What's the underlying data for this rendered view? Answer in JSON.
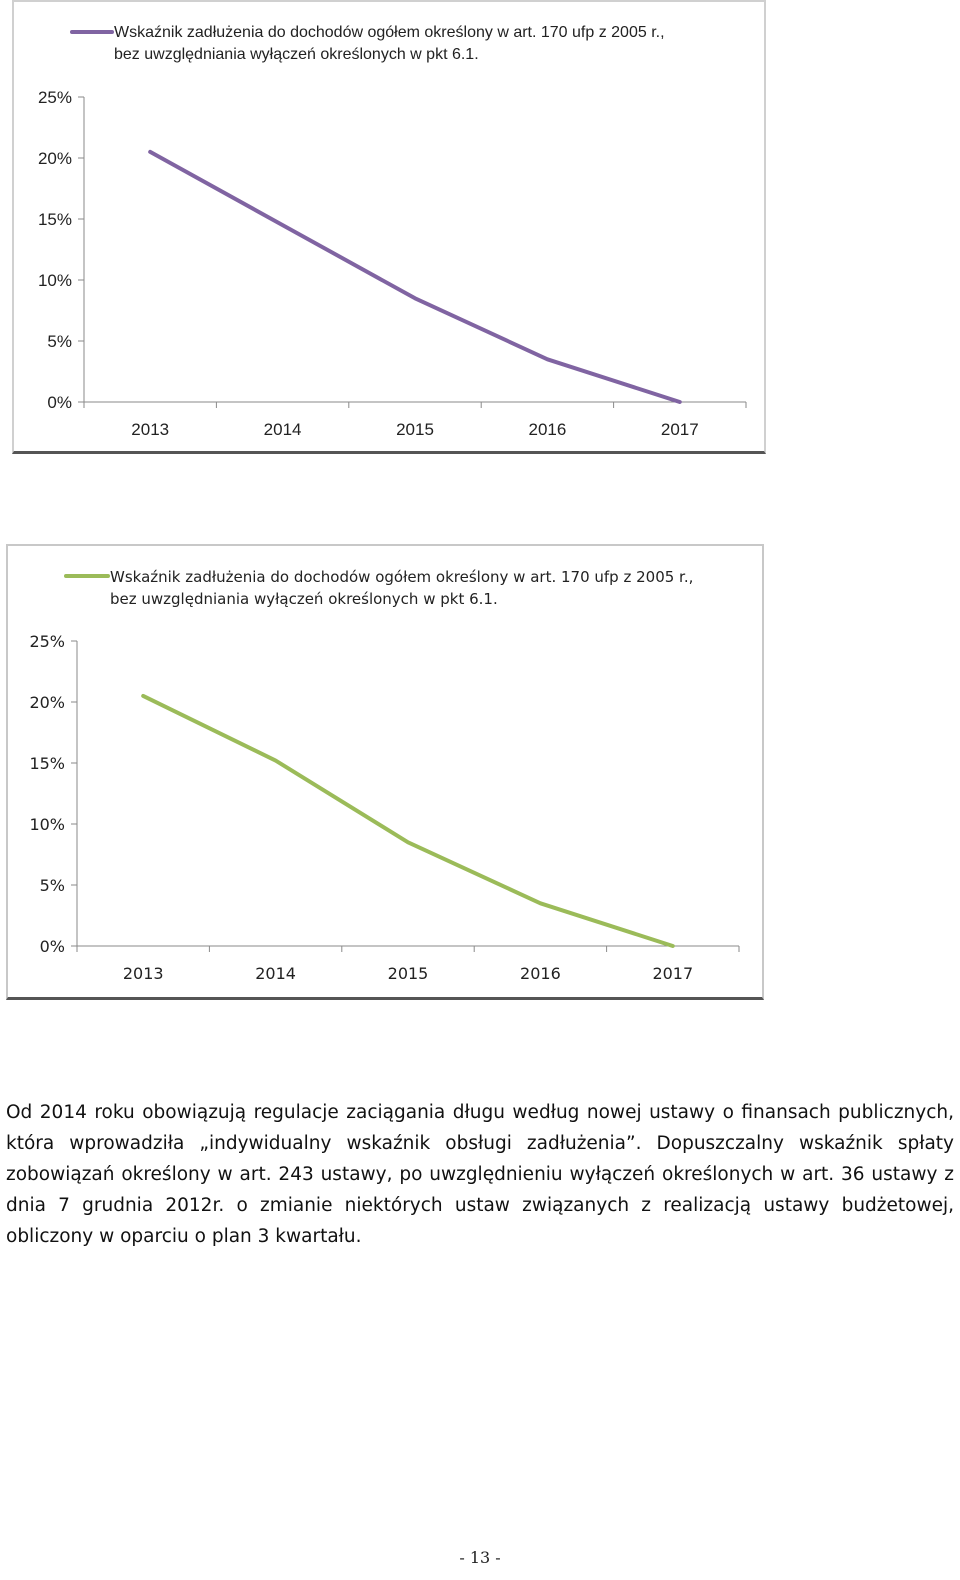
{
  "chart_data": [
    {
      "type": "line",
      "categories": [
        "2013",
        "2014",
        "2015",
        "2016",
        "2017"
      ],
      "series": [
        {
          "name": "Wskaźnik zadłużenia do dochodów ogółem określony w art. 170 ufp z 2005 r., bez uwzględniania wyłączeń określonych w pkt 6.1.",
          "values": [
            20.5,
            14.5,
            8.5,
            3.5,
            0.0
          ],
          "color": "#8064a2"
        }
      ],
      "y_ticks": [
        "0%",
        "5%",
        "10%",
        "15%",
        "20%",
        "25%"
      ],
      "ylim": [
        0,
        25
      ],
      "legend_lines": [
        "Wskaźnik zadłużenia do dochodów ogółem określony w art. 170 ufp z 2005 r.,",
        "bez uwzględniania wyłączeń określonych w pkt 6.1."
      ],
      "legend_position": "top",
      "grid": false
    },
    {
      "type": "line",
      "categories": [
        "2013",
        "2014",
        "2015",
        "2016",
        "2017"
      ],
      "series": [
        {
          "name": "Wskaźnik zadłużenia do dochodów ogółem określony w art. 170 ufp z 2005 r., bez uwzględniania wyłączeń określonych w pkt 6.1.",
          "values": [
            20.5,
            15.2,
            8.5,
            3.5,
            0.0
          ],
          "color": "#9bbb59"
        }
      ],
      "y_ticks": [
        "0%",
        "5%",
        "10%",
        "15%",
        "20%",
        "25%"
      ],
      "ylim": [
        0,
        25
      ],
      "legend_lines": [
        "Wskaźnik zadłużenia do dochodów ogółem określony w art. 170 ufp z 2005 r.,",
        "bez uwzględniania wyłączeń określonych w pkt 6.1."
      ],
      "legend_position": "top",
      "grid": false
    }
  ],
  "paragraph": {
    "line1": "Od 2014 roku obowiązują regulacje zaciągania długu według nowej ustawy o finansach publicznych, która wprowadziła „indywidualny wskaźnik obsługi zadłużenia”.",
    "line2": "Dopuszczalny wskaźnik spłaty zobowiązań określony w art. 243 ustawy, po uwzględnieniu wyłączeń określonych w art. 36 ustawy z dnia 7 grudnia 2012r. o zmianie niektórych ustaw związanych z realizacją    ustawy budżetowej, obliczony w oparciu o plan 3 kwartału."
  },
  "page_number": "- 13 -"
}
